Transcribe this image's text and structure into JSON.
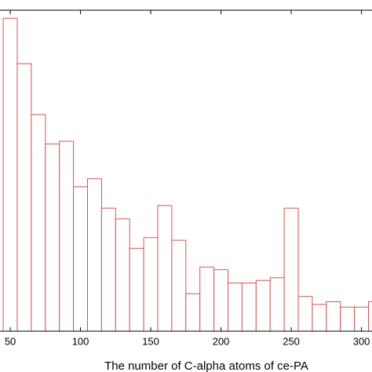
{
  "chart_data": {
    "type": "histogram",
    "x_label": "The number of C-alpha atoms of ce-PA",
    "bins": [
      45,
      55,
      65,
      75,
      85,
      95,
      105,
      115,
      125,
      135,
      145,
      155,
      165,
      175,
      185,
      195,
      205,
      215,
      225,
      235,
      245,
      255,
      265,
      275,
      285,
      295,
      305,
      315
    ],
    "values": [
      117,
      100,
      81,
      70,
      71,
      54,
      57,
      46,
      42,
      31,
      35,
      47,
      34,
      14,
      24,
      23,
      18,
      18,
      19,
      20,
      46,
      13,
      10,
      11,
      9,
      9,
      11
    ],
    "color": "#d9534f",
    "xlim": [
      42.7,
      307.5
    ],
    "ylim": [
      0,
      120
    ],
    "xticks": [
      50,
      100,
      150,
      200,
      250,
      300
    ]
  }
}
